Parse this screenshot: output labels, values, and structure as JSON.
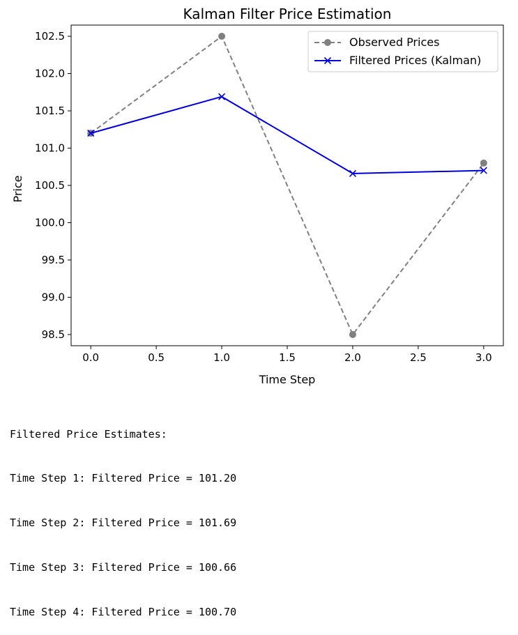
{
  "chart_data": {
    "type": "line",
    "title": "Kalman Filter Price Estimation",
    "xlabel": "Time Step",
    "ylabel": "Price",
    "x": [
      0,
      1,
      2,
      3
    ],
    "xlim": [
      -0.15,
      3.15
    ],
    "ylim": [
      98.35,
      102.65
    ],
    "xticks": [
      0.0,
      0.5,
      1.0,
      1.5,
      2.0,
      2.5,
      3.0
    ],
    "xtick_labels": [
      "0.0",
      "0.5",
      "1.0",
      "1.5",
      "2.0",
      "2.5",
      "3.0"
    ],
    "yticks": [
      98.5,
      99.0,
      99.5,
      100.0,
      100.5,
      101.0,
      101.5,
      102.0,
      102.5
    ],
    "ytick_labels": [
      "98.5",
      "99.0",
      "99.5",
      "100.0",
      "100.5",
      "101.0",
      "101.5",
      "102.0",
      "102.5"
    ],
    "grid": false,
    "legend_position": "top-right",
    "series": [
      {
        "name": "Observed Prices",
        "values": [
          101.2,
          102.5,
          98.5,
          100.8
        ],
        "color": "#808080",
        "linestyle": "dashed",
        "marker": "circle"
      },
      {
        "name": "Filtered Prices (Kalman)",
        "values": [
          101.2,
          101.69,
          100.66,
          100.7
        ],
        "color": "#0000d8",
        "linestyle": "solid",
        "marker": "x"
      }
    ]
  },
  "output": {
    "header": "Filtered Price Estimates:",
    "lines": [
      "Time Step 1: Filtered Price = 101.20",
      "Time Step 2: Filtered Price = 101.69",
      "Time Step 3: Filtered Price = 100.66",
      "Time Step 4: Filtered Price = 100.70"
    ]
  }
}
